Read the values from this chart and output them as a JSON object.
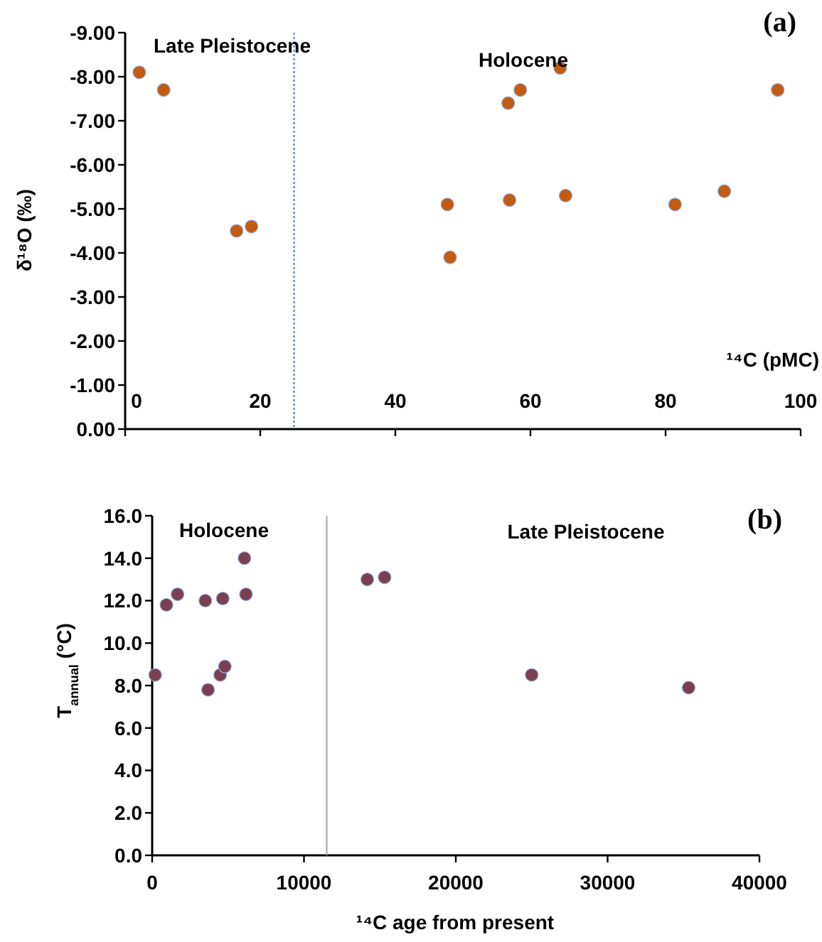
{
  "chart_data": [
    {
      "type": "scatter",
      "xlabel": "¹⁴C (pMC)",
      "ylabel": "δ¹⁸O (‰)",
      "marker": "circle",
      "grid": false,
      "xlim": [
        0,
        100
      ],
      "xticks": [
        0,
        20,
        40,
        60,
        80,
        100
      ],
      "ylim": [
        0,
        -9
      ],
      "yticks": [
        {
          "value": 0,
          "label": "0.00"
        },
        {
          "value": -1,
          "label": "-1.00"
        },
        {
          "value": -2,
          "label": "-2.00"
        },
        {
          "value": -3,
          "label": "-3.00"
        },
        {
          "value": -4,
          "label": "-4.00"
        },
        {
          "value": -5,
          "label": "-5.00"
        },
        {
          "value": -6,
          "label": "-6.00"
        },
        {
          "value": -7,
          "label": "-7.00"
        },
        {
          "value": -8,
          "label": "-8.00"
        },
        {
          "value": -9,
          "label": "-9.00"
        }
      ],
      "series": [
        {
          "color": "#c55a11",
          "x": [
            2.1,
            5.7,
            16.5,
            18.7,
            47.7,
            48.1,
            56.7,
            56.9,
            58.5,
            64.4,
            65.2,
            81.4,
            88.7,
            96.6
          ],
          "values": [
            -8.1,
            -7.7,
            -4.5,
            -4.6,
            -5.1,
            -3.9,
            -7.4,
            -5.2,
            -7.7,
            -8.2,
            -5.3,
            -5.1,
            -5.4,
            -7.7
          ]
        }
      ],
      "ref_lines": [
        {
          "axis": "x",
          "value": 25,
          "color": "#4472c4",
          "line_style": "dotted"
        }
      ],
      "annotations": [
        "Late Pleistocene",
        "Holocene",
        "(a)"
      ]
    },
    {
      "type": "scatter",
      "xlabel": "¹⁴C age from present",
      "ylabel": "T$_{annual}$ (°C)",
      "marker": "circle",
      "grid": false,
      "xlim": [
        0,
        40000
      ],
      "xticks": [
        0,
        10000,
        20000,
        30000,
        40000
      ],
      "ylim": [
        0,
        16
      ],
      "yticks": [
        {
          "value": 0,
          "label": "0.0"
        },
        {
          "value": 2,
          "label": "2.0"
        },
        {
          "value": 4,
          "label": "4.0"
        },
        {
          "value": 6,
          "label": "6.0"
        },
        {
          "value": 8,
          "label": "8.0"
        },
        {
          "value": 10,
          "label": "10.0"
        },
        {
          "value": 12,
          "label": "12.0"
        },
        {
          "value": 14,
          "label": "14.0"
        },
        {
          "value": 16,
          "label": "16.0"
        }
      ],
      "series": [
        {
          "color": "#7b3f4f",
          "x": [
            200,
            940,
            1670,
            3500,
            3680,
            4480,
            4650,
            4790,
            6080,
            6180,
            14170,
            15310,
            25000,
            35340
          ],
          "values": [
            8.5,
            11.8,
            12.3,
            12.0,
            7.8,
            8.5,
            12.1,
            8.9,
            14.0,
            12.3,
            13.0,
            13.1,
            8.5,
            7.9
          ]
        }
      ],
      "ref_lines": [
        {
          "axis": "x",
          "value": 11500,
          "color": "#a6a6a6",
          "line_style": "solid"
        }
      ],
      "annotations": [
        "Holocene",
        "Late Pleistocene",
        "(b)"
      ]
    }
  ]
}
